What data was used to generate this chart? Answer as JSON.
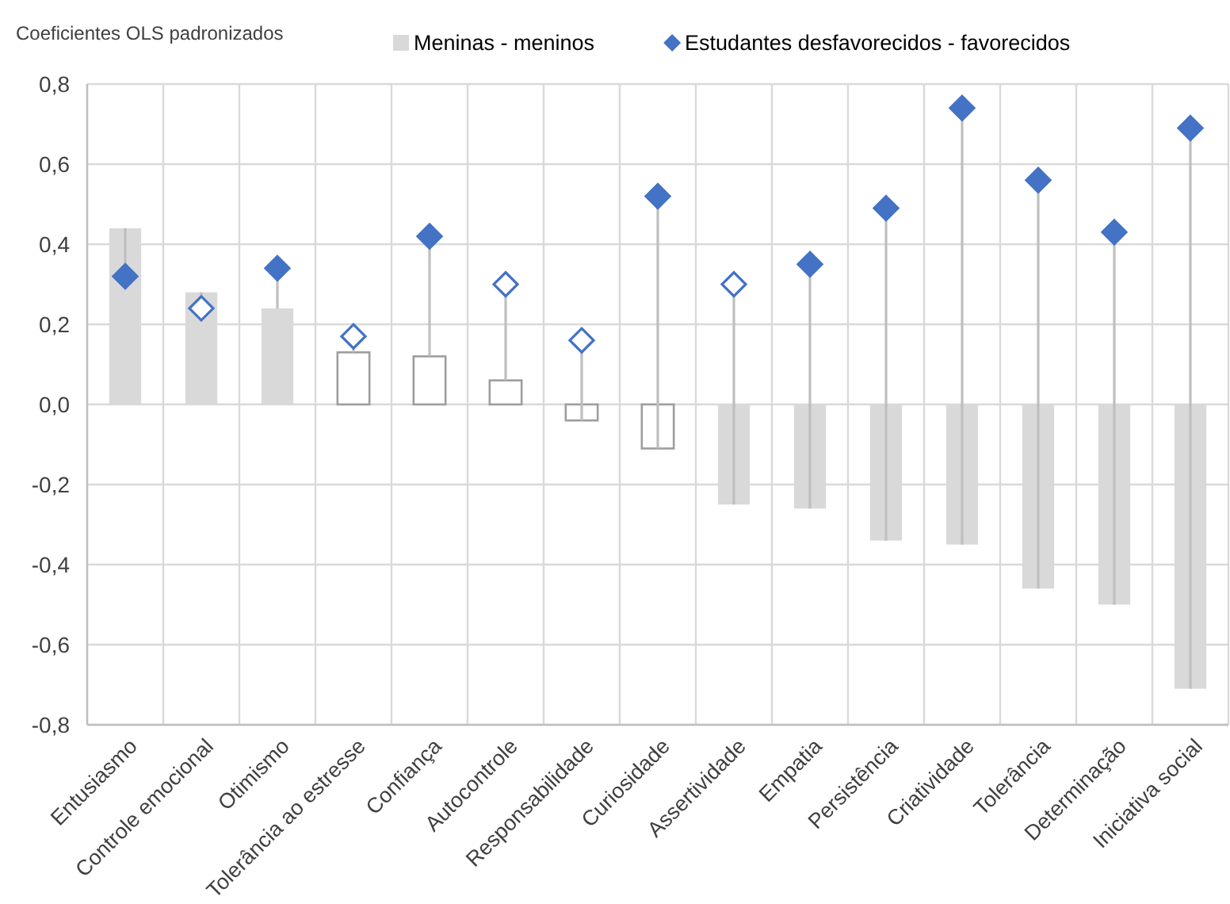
{
  "chart_data": {
    "type": "bar",
    "ylabel": "Coeficientes OLS padronizados",
    "categories": [
      "Entusiasmo",
      "Controle emocional",
      "Otimismo",
      "Tolerância ao estresse",
      "Confiança",
      "Autocontrole",
      "Responsabilidade",
      "Curiosidade",
      "Assertividade",
      "Empatia",
      "Persistência",
      "Criatividade",
      "Tolerância",
      "Determinação",
      "Iniciativa social"
    ],
    "series": [
      {
        "name": "Meninas - meninos",
        "color": "#d9d9d9",
        "colors": [
          "#d9d9d9",
          "#d9d9d9",
          "#d9d9d9",
          "#ffffff",
          "#ffffff",
          "#ffffff",
          "#ffffff",
          "#ffffff",
          "#d9d9d9",
          "#d9d9d9",
          "#d9d9d9",
          "#d9d9d9",
          "#d9d9d9",
          "#d9d9d9",
          "#d9d9d9"
        ],
        "values": [
          0.44,
          0.28,
          0.24,
          0.13,
          0.12,
          0.06,
          -0.04,
          -0.11,
          -0.25,
          -0.26,
          -0.34,
          -0.35,
          -0.46,
          -0.5,
          -0.71
        ]
      },
      {
        "name": "Estudantes desfavorecidos - favorecidos",
        "type": "scatter",
        "color": "#4472c4",
        "colors": [
          "#4472c4",
          "#ffffff",
          "#4472c4",
          "#ffffff",
          "#4472c4",
          "#ffffff",
          "#ffffff",
          "#4472c4",
          "#ffffff",
          "#4472c4",
          "#4472c4",
          "#4472c4",
          "#4472c4",
          "#4472c4",
          "#4472c4"
        ],
        "values": [
          0.32,
          0.24,
          0.34,
          0.17,
          0.42,
          0.3,
          0.16,
          0.52,
          0.3,
          0.35,
          0.49,
          0.74,
          0.56,
          0.43,
          0.69
        ],
        "errors": [
          [
            0.32,
            0.44
          ],
          [
            0.24,
            0.28
          ],
          [
            0.24,
            0.34
          ],
          [
            0.13,
            0.17
          ],
          [
            0.12,
            0.42
          ],
          [
            0.06,
            0.3
          ],
          [
            -0.04,
            0.16
          ],
          [
            -0.11,
            0.52
          ],
          [
            -0.25,
            0.3
          ],
          [
            -0.26,
            0.35
          ],
          [
            -0.34,
            0.49
          ],
          [
            -0.35,
            0.74
          ],
          [
            -0.46,
            0.56
          ],
          [
            -0.5,
            0.43
          ],
          [
            -0.71,
            0.69
          ]
        ]
      }
    ],
    "ylim": [
      -0.8,
      0.8
    ],
    "yticks": [
      {
        "value": -0.8,
        "label": "-0,8"
      },
      {
        "value": -0.6,
        "label": "-0,6"
      },
      {
        "value": -0.4,
        "label": "-0,4"
      },
      {
        "value": -0.2,
        "label": "-0,2"
      },
      {
        "value": 0,
        "label": "0,0"
      },
      {
        "value": 0.2,
        "label": "0,2"
      },
      {
        "value": 0.4,
        "label": "0,4"
      },
      {
        "value": 0.6,
        "label": "0,6"
      },
      {
        "value": 0.8,
        "label": "0,8"
      }
    ],
    "grid": true,
    "legend": "top",
    "marker": "diamond"
  }
}
